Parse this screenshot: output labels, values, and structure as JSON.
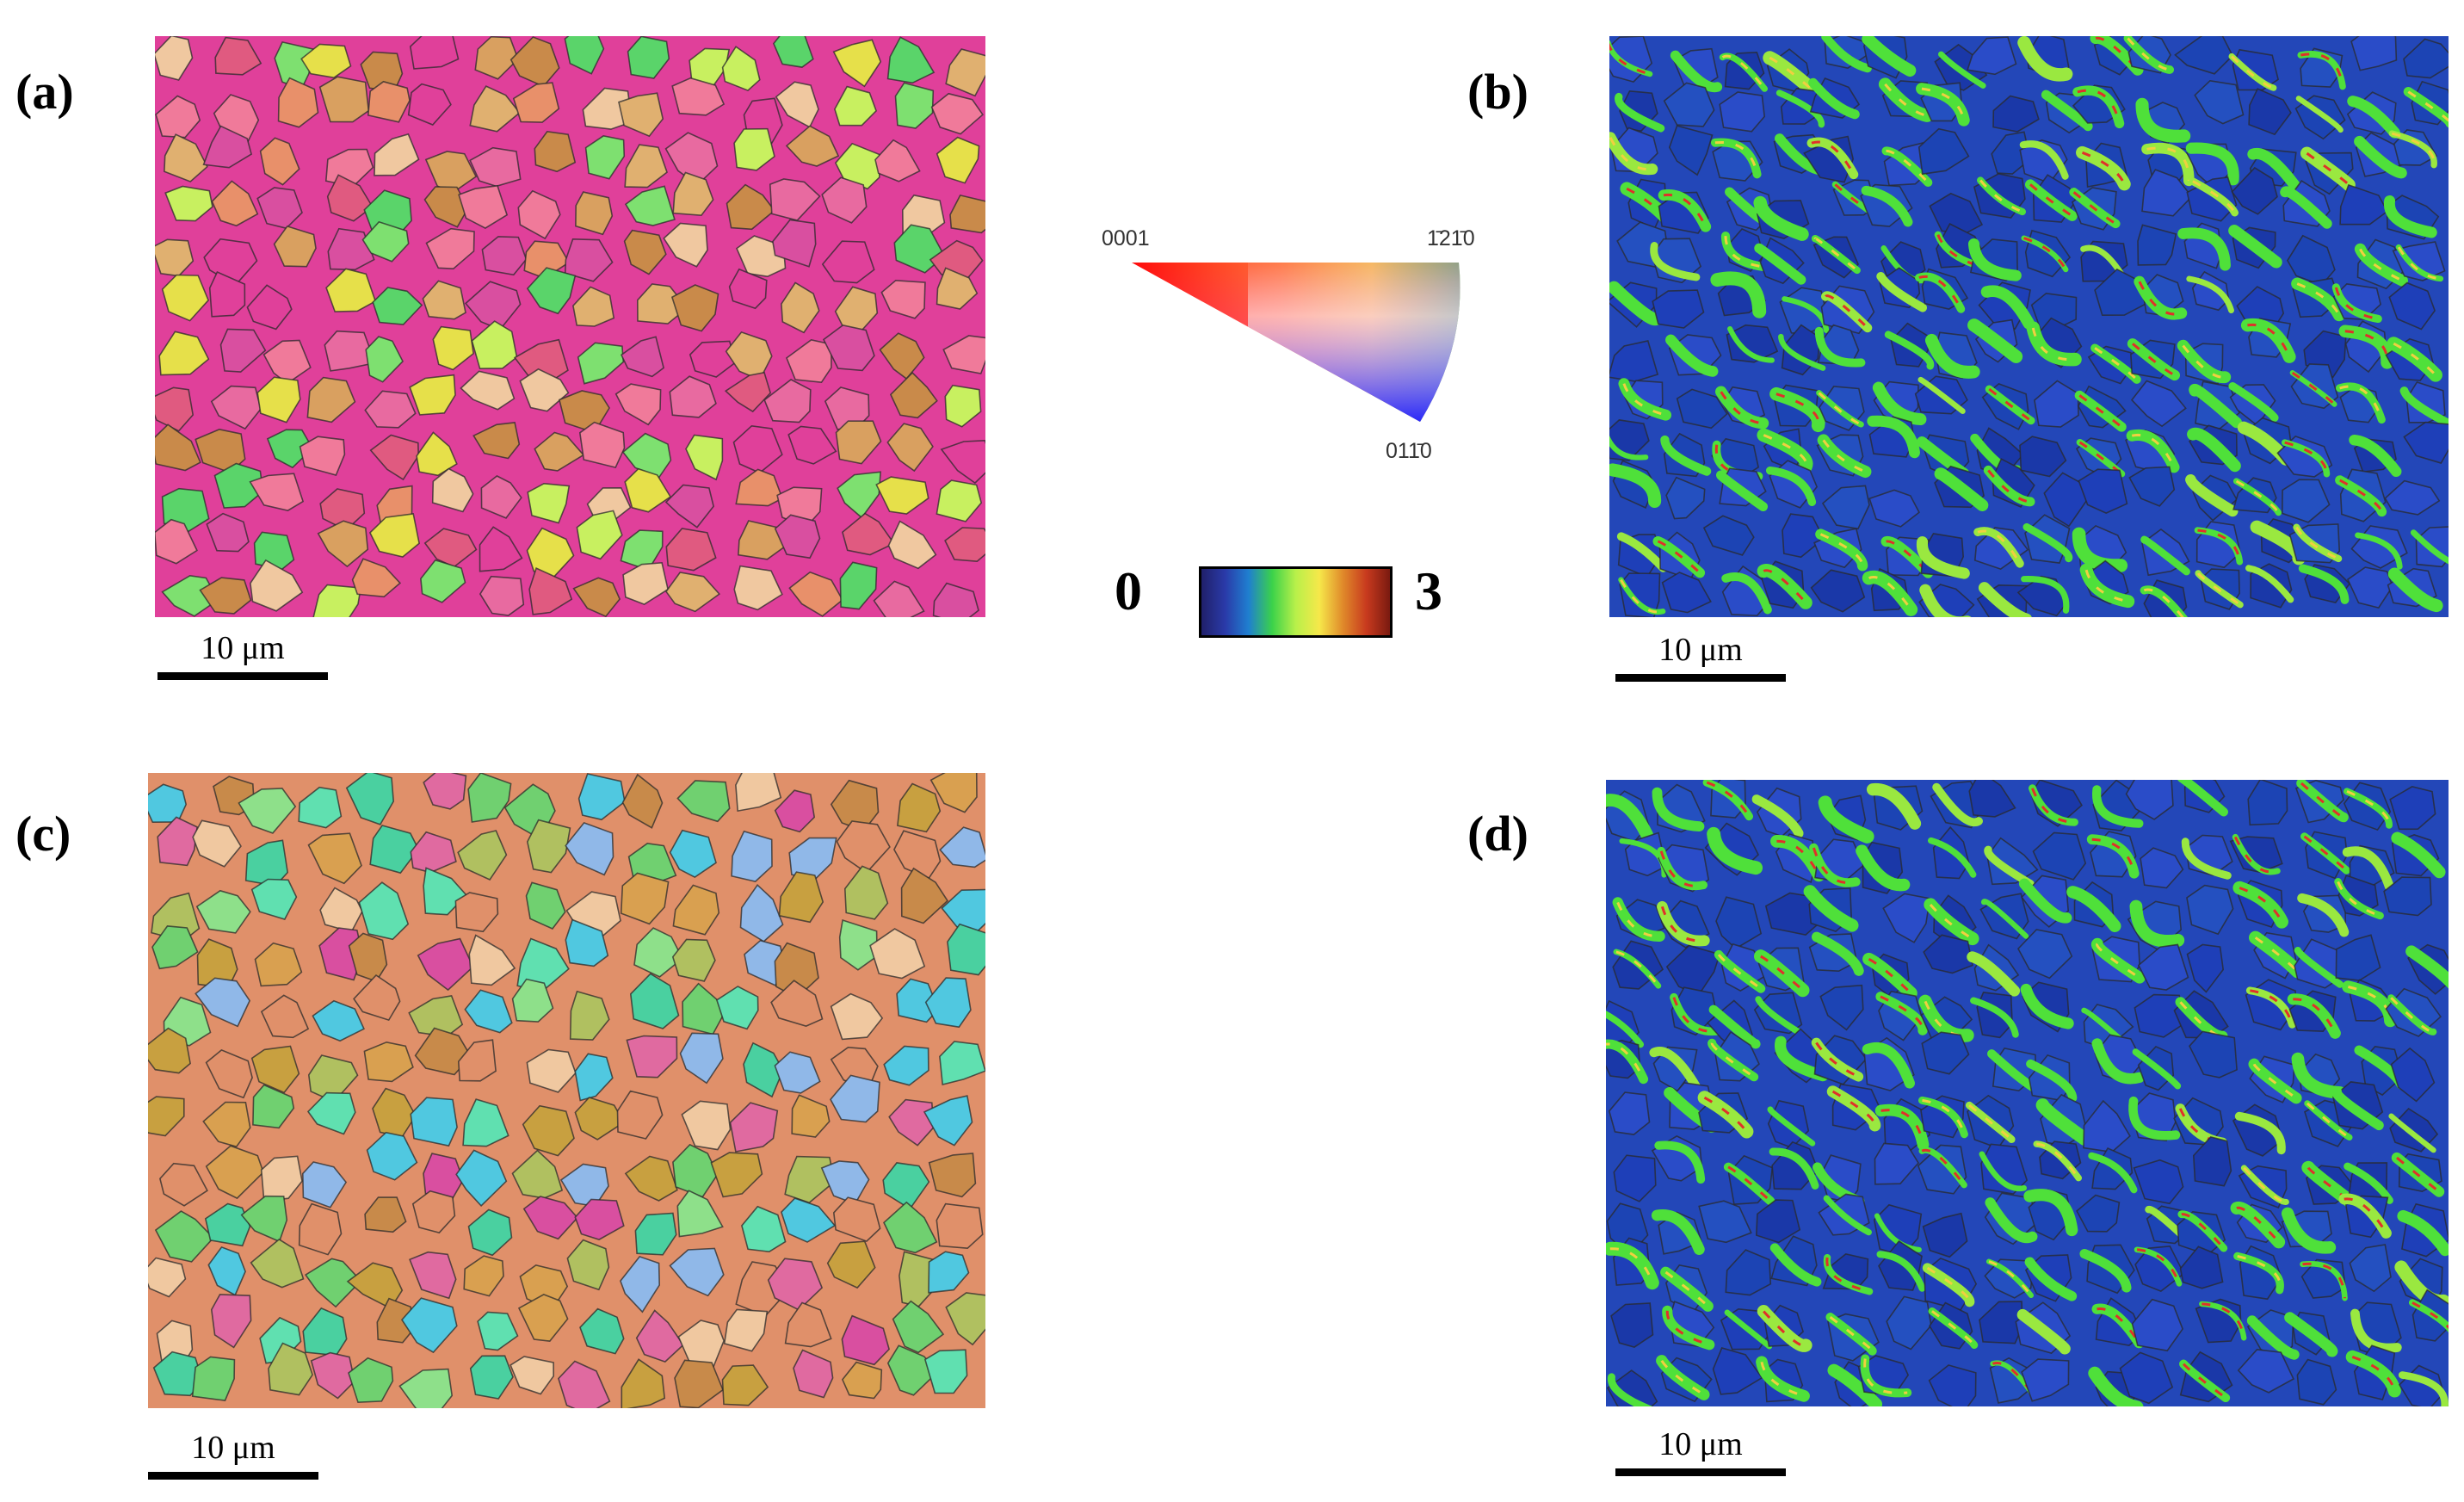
{
  "panels": [
    {
      "id": "a",
      "label": "(a)",
      "kind": "ipf-map",
      "scale_bar": "10 μm"
    },
    {
      "id": "b",
      "label": "(b)",
      "kind": "kam-map",
      "scale_bar": "10 μm"
    },
    {
      "id": "c",
      "label": "(c)",
      "kind": "ipf-map",
      "scale_bar": "10 μm"
    },
    {
      "id": "d",
      "label": "(d)",
      "kind": "kam-map",
      "scale_bar": "10 μm"
    }
  ],
  "ipf_legend": {
    "corner_0001": "0001",
    "corner_1210": "1̄21̄0",
    "corner_0110": "011̄0"
  },
  "kam_legend": {
    "min": "0",
    "max": "3",
    "colors": [
      "#20206a",
      "#2a3aa8",
      "#1f7fd0",
      "#3bd24a",
      "#b8f04a",
      "#f6e84a",
      "#e08a2a",
      "#c83a1e",
      "#7a1a10"
    ]
  }
}
